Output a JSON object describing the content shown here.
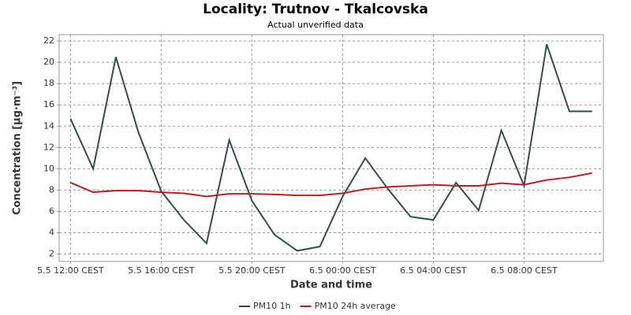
{
  "chart_data": {
    "type": "line",
    "title": "Locality: Trutnov - Tkalcovska",
    "subtitle": "Actual unverified data",
    "x_label": "Date and time",
    "y_label": "Concentration [µg·m⁻³]",
    "categories": [
      "5.5 12:00 CEST",
      null,
      null,
      null,
      "5.5 16:00 CEST",
      null,
      null,
      null,
      "5.5 20:00 CEST",
      null,
      null,
      null,
      "6.5 00:00 CEST",
      null,
      null,
      null,
      "6.5 04:00 CEST",
      null,
      null,
      null,
      "6.5 08:00 CEST",
      null,
      null,
      null
    ],
    "series": [
      {
        "name": "PM10 1h",
        "color": "#2f4f4f",
        "values": [
          14.7,
          10.0,
          20.5,
          13.4,
          7.9,
          5.2,
          3.0,
          12.7,
          7.0,
          3.8,
          2.3,
          2.7,
          7.4,
          11.0,
          8.1,
          5.5,
          5.2,
          8.7,
          6.1,
          13.6,
          8.4,
          21.7,
          15.4,
          15.4
        ]
      },
      {
        "name": "PM10 24h average",
        "color": "#b22222",
        "values": [
          8.7,
          7.8,
          7.95,
          7.95,
          7.8,
          7.7,
          7.4,
          7.65,
          7.65,
          7.6,
          7.5,
          7.5,
          7.7,
          8.1,
          8.3,
          8.4,
          8.5,
          8.4,
          8.4,
          8.65,
          8.5,
          8.95,
          9.2,
          9.6
        ]
      }
    ],
    "ylim": [
      1.3,
      22.6
    ],
    "yticks": [
      2,
      4,
      6,
      8,
      10,
      12,
      14,
      16,
      18,
      20,
      22
    ],
    "grid": true,
    "legend": "bottom"
  }
}
